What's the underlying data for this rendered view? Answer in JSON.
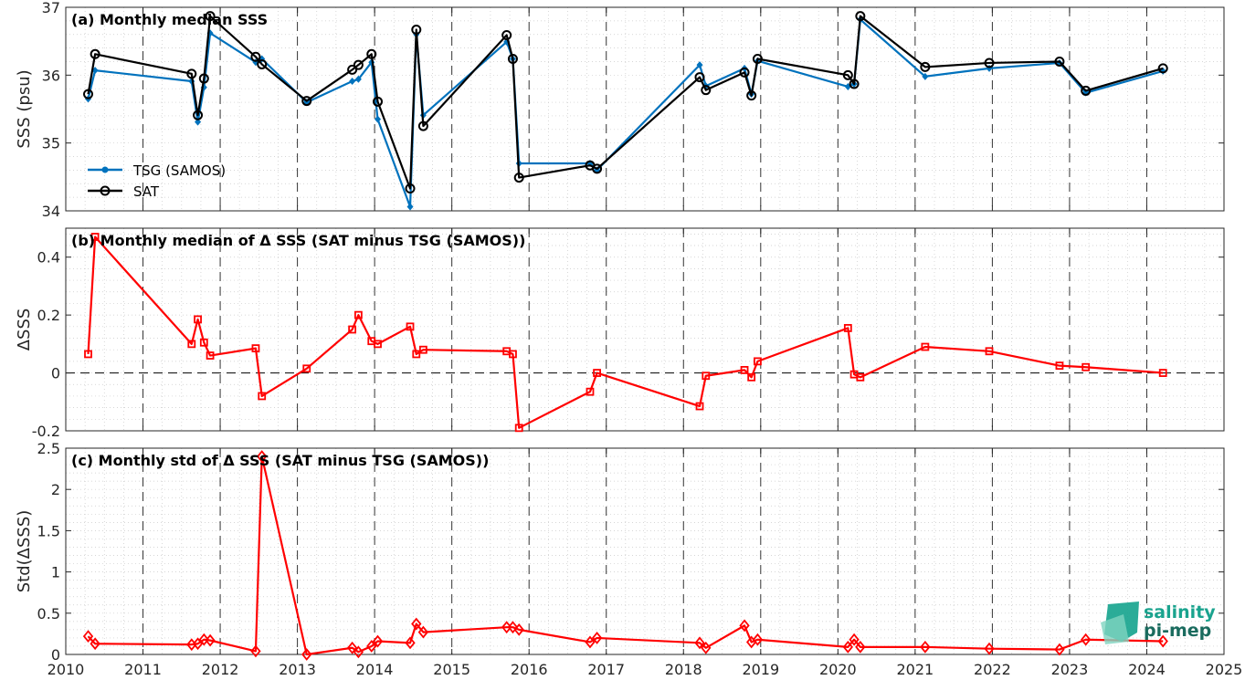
{
  "chart_data": [
    {
      "type": "line",
      "title": "(a) Monthly median SSS",
      "xlabel": "",
      "ylabel": "SSS (psu)",
      "xlim": [
        2010,
        2025
      ],
      "ylim": [
        34,
        37
      ],
      "yticks": [
        34,
        35,
        36,
        37
      ],
      "yticklabels": [
        "34",
        "35",
        "36",
        "37"
      ],
      "grid": true,
      "legend": "inside-lower-left",
      "series": [
        {
          "name": "TSG (SAMOS)",
          "color": "#0072BD",
          "marker": "dot",
          "x": [
            2010.29,
            2010.38,
            2011.63,
            2011.71,
            2011.79,
            2011.87,
            2012.46,
            2012.54,
            2013.12,
            2013.71,
            2013.79,
            2013.96,
            2014.04,
            2014.46,
            2014.54,
            2014.63,
            2015.71,
            2015.79,
            2015.87,
            2016.79,
            2016.88,
            2018.21,
            2018.29,
            2018.79,
            2018.88,
            2018.96,
            2020.13,
            2020.21,
            2020.29,
            2021.13,
            2021.96,
            2022.87,
            2023.21,
            2024.21
          ],
          "y": [
            35.65,
            36.07,
            35.91,
            35.31,
            35.82,
            36.62,
            36.19,
            36.24,
            35.6,
            35.91,
            35.94,
            36.19,
            35.35,
            34.06,
            36.6,
            35.41,
            36.49,
            36.24,
            34.7,
            34.7,
            34.6,
            36.15,
            35.84,
            36.1,
            35.72,
            36.21,
            35.83,
            35.87,
            36.82,
            35.98,
            36.1,
            36.18,
            35.74,
            36.06
          ]
        },
        {
          "name": "SAT",
          "color": "#000000",
          "marker": "circle",
          "x": [
            2010.29,
            2010.38,
            2011.63,
            2011.71,
            2011.79,
            2011.87,
            2012.46,
            2012.54,
            2013.12,
            2013.71,
            2013.79,
            2013.96,
            2014.04,
            2014.46,
            2014.54,
            2014.63,
            2015.71,
            2015.79,
            2015.87,
            2016.79,
            2016.88,
            2018.21,
            2018.29,
            2018.79,
            2018.88,
            2018.96,
            2020.13,
            2020.21,
            2020.29,
            2021.13,
            2021.96,
            2022.87,
            2023.21,
            2024.21
          ],
          "y": [
            35.72,
            36.31,
            36.02,
            35.41,
            35.95,
            36.87,
            36.27,
            36.16,
            35.62,
            36.08,
            36.15,
            36.31,
            35.61,
            34.33,
            36.67,
            35.25,
            36.59,
            36.24,
            34.49,
            34.67,
            34.62,
            35.97,
            35.78,
            36.04,
            35.7,
            36.24,
            36.0,
            35.87,
            36.87,
            36.12,
            36.18,
            36.2,
            35.77,
            36.1
          ]
        }
      ]
    },
    {
      "type": "line",
      "title": "(b) Monthly median of Δ SSS (SAT minus TSG (SAMOS))",
      "xlabel": "",
      "ylabel": "ΔSSS",
      "xlim": [
        2010,
        2025
      ],
      "ylim": [
        -0.2,
        0.5
      ],
      "yticks": [
        -0.2,
        0,
        0.2,
        0.4
      ],
      "yticklabels": [
        "-0.2",
        "0",
        "0.2",
        "0.4"
      ],
      "grid": true,
      "zero_line": true,
      "series": [
        {
          "color": "#FF0000",
          "marker": "square",
          "x": [
            2010.29,
            2010.38,
            2011.63,
            2011.71,
            2011.79,
            2011.87,
            2012.46,
            2012.54,
            2013.12,
            2013.71,
            2013.79,
            2013.96,
            2014.04,
            2014.46,
            2014.54,
            2014.63,
            2015.71,
            2015.79,
            2015.87,
            2016.79,
            2016.88,
            2018.21,
            2018.29,
            2018.79,
            2018.88,
            2018.96,
            2020.13,
            2020.21,
            2020.29,
            2021.13,
            2021.96,
            2022.87,
            2023.21,
            2024.21
          ],
          "y": [
            0.065,
            0.47,
            0.1,
            0.185,
            0.105,
            0.06,
            0.085,
            -0.08,
            0.015,
            0.15,
            0.2,
            0.11,
            0.1,
            0.16,
            0.065,
            0.08,
            0.075,
            0.065,
            -0.19,
            -0.065,
            0.0,
            -0.115,
            -0.01,
            0.01,
            -0.015,
            0.04,
            0.155,
            -0.005,
            -0.015,
            0.09,
            0.075,
            0.025,
            0.02,
            0.0
          ]
        }
      ]
    },
    {
      "type": "line",
      "title": "(c) Monthly std of Δ SSS (SAT minus TSG (SAMOS))",
      "xlabel": "",
      "ylabel": "Std(ΔSSS)",
      "xlim": [
        2010,
        2025
      ],
      "ylim": [
        0,
        2.5
      ],
      "yticks": [
        0,
        0.5,
        1,
        1.5,
        2,
        2.5
      ],
      "yticklabels": [
        "0",
        "0.5",
        "1",
        "1.5",
        "2",
        "2.5"
      ],
      "xticks": [
        2010,
        2011,
        2012,
        2013,
        2014,
        2015,
        2016,
        2017,
        2018,
        2019,
        2020,
        2021,
        2022,
        2023,
        2024,
        2025
      ],
      "xticklabels": [
        "2010",
        "2011",
        "2012",
        "2013",
        "2014",
        "2015",
        "2016",
        "2017",
        "2018",
        "2019",
        "2020",
        "2021",
        "2022",
        "2023",
        "2024",
        "2025"
      ],
      "grid": true,
      "series": [
        {
          "color": "#FF0000",
          "marker": "diamond",
          "x": [
            2010.29,
            2010.38,
            2011.63,
            2011.71,
            2011.79,
            2011.87,
            2012.46,
            2012.54,
            2013.12,
            2013.71,
            2013.79,
            2013.96,
            2014.04,
            2014.46,
            2014.54,
            2014.63,
            2015.71,
            2015.79,
            2015.87,
            2016.79,
            2016.88,
            2018.21,
            2018.29,
            2018.79,
            2018.88,
            2018.96,
            2020.13,
            2020.21,
            2020.29,
            2021.13,
            2021.96,
            2022.87,
            2023.21,
            2024.21
          ],
          "y": [
            0.22,
            0.13,
            0.12,
            0.13,
            0.18,
            0.17,
            0.04,
            2.4,
            0.0,
            0.08,
            0.03,
            0.1,
            0.16,
            0.14,
            0.37,
            0.27,
            0.33,
            0.33,
            0.3,
            0.15,
            0.2,
            0.14,
            0.08,
            0.35,
            0.15,
            0.18,
            0.09,
            0.18,
            0.09,
            0.09,
            0.07,
            0.06,
            0.18,
            0.16
          ]
        }
      ]
    }
  ],
  "logo": {
    "line1": "salinity",
    "line2": "pi-mep",
    "color": "#1aa38e"
  }
}
